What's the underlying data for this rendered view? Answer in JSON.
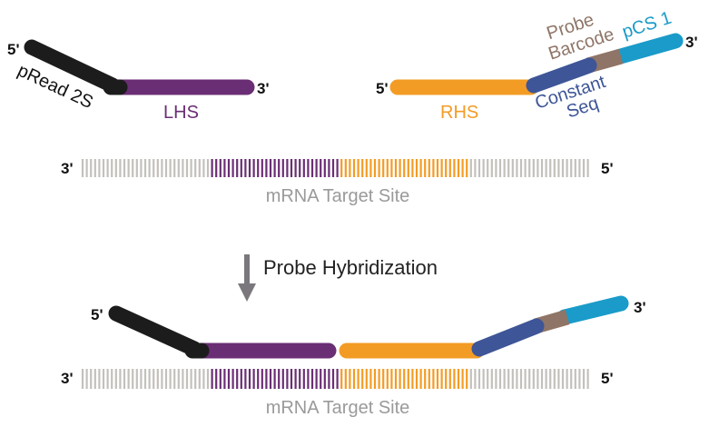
{
  "colors": {
    "black": "#1c1c1c",
    "lhs": "#6a2e74",
    "rhs": "#f39c25",
    "constant": "#3e5597",
    "barcode": "#8f7567",
    "pcs1": "#1a9bc9",
    "mrna": "#c3c0bc",
    "arrow": "#7b787d",
    "label_gray": "#9a9a9a"
  },
  "top": {
    "left_probe": {
      "five_prime": "5'",
      "three_prime": "3'",
      "pread_label": "pRead 2S",
      "lhs_label": "LHS"
    },
    "right_probe": {
      "five_prime": "5'",
      "three_prime": "3'",
      "rhs_label": "RHS",
      "probe_barcode_line1": "Probe",
      "probe_barcode_line2": "Barcode",
      "pcs1_label": "pCS 1",
      "constant_line1": "Constant",
      "constant_line2": "Seq"
    },
    "mrna": {
      "three_prime": "3'",
      "five_prime": "5'",
      "label": "mRNA Target Site"
    }
  },
  "step": {
    "label": "Probe Hybridization",
    "icon": "arrow-down-icon"
  },
  "bottom": {
    "five_prime": "5'",
    "three_prime": "3'",
    "mrna": {
      "three_prime": "3'",
      "five_prime": "5'",
      "label": "mRNA Target Site"
    }
  }
}
